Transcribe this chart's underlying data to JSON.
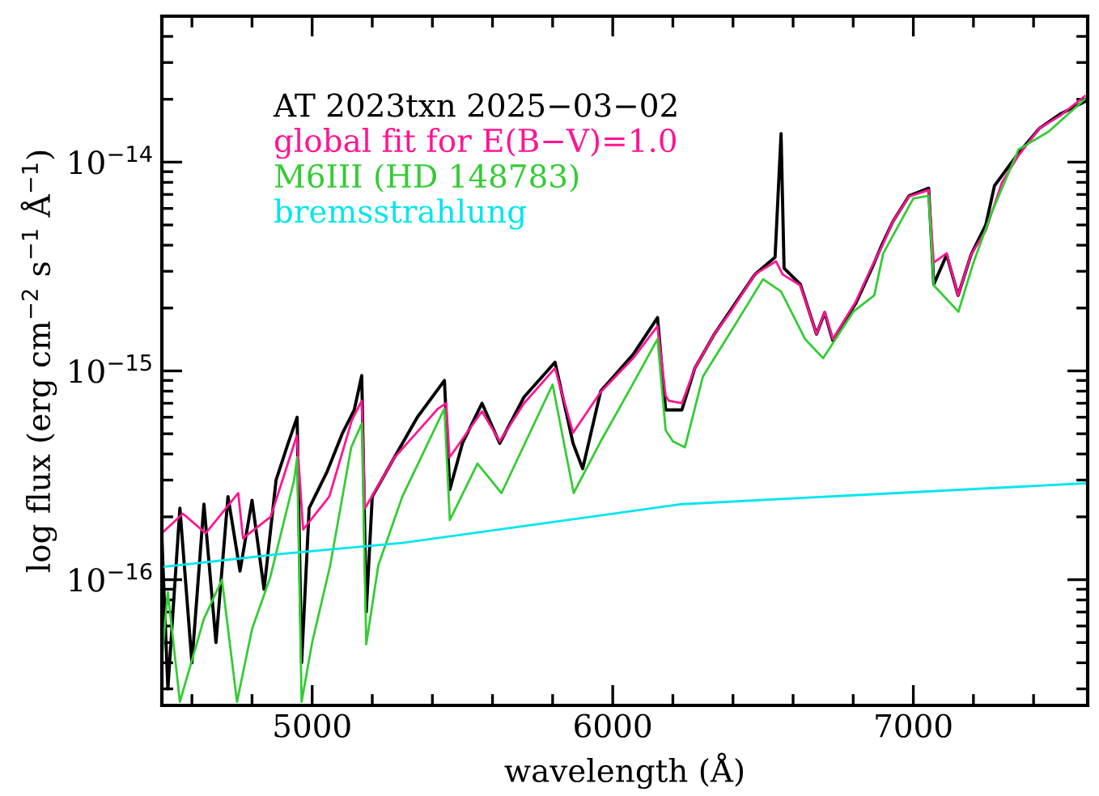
{
  "chart_data": {
    "type": "line",
    "xlabel": "wavelength (Å)",
    "ylabel": "log flux (erg cm$^{−2}$ s$^{−1}$ Å$^{−1}$)",
    "log": "y",
    "grid": false,
    "legend": "top left",
    "marker": "none",
    "line_style": "solid",
    "xlim": [
      4500,
      7580
    ],
    "ylim": [
      2.5e-17,
      5e-14
    ],
    "xticks": [
      {
        "value": 4600,
        "label": null
      },
      {
        "value": 4800,
        "label": null
      },
      5000,
      {
        "value": 5200,
        "label": null
      },
      {
        "value": 5400,
        "label": null
      },
      {
        "value": 5600,
        "label": null
      },
      {
        "value": 5800,
        "label": null
      },
      6000,
      {
        "value": 6200,
        "label": null
      },
      {
        "value": 6400,
        "label": null
      },
      {
        "value": 6600,
        "label": null
      },
      {
        "value": 6800,
        "label": null
      },
      7000,
      {
        "value": 7200,
        "label": null
      },
      {
        "value": 7400,
        "label": null
      }
    ],
    "yticks": [
      {
        "value": 3e-17,
        "label": null
      },
      {
        "value": 4e-17,
        "label": null
      },
      {
        "value": 5e-17,
        "label": null
      },
      {
        "value": 6e-17,
        "label": null
      },
      {
        "value": 7e-17,
        "label": null
      },
      {
        "value": 8e-17,
        "label": null
      },
      {
        "value": 9e-17,
        "label": null
      },
      {
        "value": 1e-16,
        "label": "10$^{−16}$"
      },
      {
        "value": 2e-16,
        "label": null
      },
      {
        "value": 3e-16,
        "label": null
      },
      {
        "value": 4e-16,
        "label": null
      },
      {
        "value": 5e-16,
        "label": null
      },
      {
        "value": 6e-16,
        "label": null
      },
      {
        "value": 7e-16,
        "label": null
      },
      {
        "value": 8e-16,
        "label": null
      },
      {
        "value": 9e-16,
        "label": null
      },
      {
        "value": 1e-15,
        "label": "10$^{−15}$"
      },
      {
        "value": 2e-15,
        "label": null
      },
      {
        "value": 3e-15,
        "label": null
      },
      {
        "value": 4e-15,
        "label": null
      },
      {
        "value": 5e-15,
        "label": null
      },
      {
        "value": 6e-15,
        "label": null
      },
      {
        "value": 7e-15,
        "label": null
      },
      {
        "value": 8e-15,
        "label": null
      },
      {
        "value": 9e-15,
        "label": null
      },
      {
        "value": 1e-14,
        "label": "10$^{−14}$"
      },
      {
        "value": 2e-14,
        "label": null
      },
      {
        "value": 3e-14,
        "label": null
      },
      {
        "value": 4e-14,
        "label": null
      },
      {
        "value": 5e-14,
        "label": null
      }
    ],
    "series": [
      {
        "name": "AT 2023txn 2025−03−02",
        "color": "#000000",
        "x": [
          4500,
          4520,
          4560,
          4600,
          4640,
          4680,
          4720,
          4760,
          4800,
          4840,
          4880,
          4920,
          4950,
          4965,
          4990,
          5050,
          5100,
          5140,
          5165,
          5180,
          5200,
          5280,
          5350,
          5440,
          5458,
          5500,
          5565,
          5624,
          5705,
          5808,
          5868,
          5900,
          5960,
          6068,
          6149,
          6176,
          6230,
          6273,
          6338,
          6392,
          6473,
          6540,
          6560,
          6570,
          6624,
          6678,
          6705,
          6732,
          6808,
          6862,
          6895,
          6932,
          6986,
          7051,
          7068,
          7111,
          7149,
          7192,
          7241,
          7270,
          7349,
          7419,
          7489,
          7570
        ],
        "values": [
          1.6e-16,
          3e-17,
          2.2e-16,
          4e-17,
          2.3e-16,
          5e-17,
          2.5e-16,
          1.1e-16,
          2.4e-16,
          9e-17,
          3e-16,
          4.5e-16,
          6e-16,
          4e-17,
          2.2e-16,
          3.3e-16,
          5e-16,
          6.5e-16,
          9.5e-16,
          7e-17,
          2.5e-16,
          4e-16,
          6e-16,
          9e-16,
          2.7e-16,
          4.5e-16,
          7e-16,
          4.5e-16,
          7.5e-16,
          1.1e-15,
          4.5e-16,
          3.4e-16,
          8e-16,
          1.2e-15,
          1.8e-15,
          6.5e-16,
          6.5e-16,
          1.03e-15,
          1.5e-15,
          1.95e-15,
          2.9e-15,
          3.5e-15,
          1.37e-14,
          3.1e-15,
          2.6e-15,
          1.5e-15,
          1.9e-15,
          1.4e-15,
          2.1e-15,
          3.1e-15,
          4e-15,
          5.2e-15,
          6.9e-15,
          7.5e-15,
          2.6e-15,
          3.6e-15,
          2.3e-15,
          3.6e-15,
          5e-15,
          7.7e-15,
          1.1e-14,
          1.45e-14,
          1.7e-14,
          1.95e-14
        ]
      },
      {
        "name": "global fit for E(B−V)=1.0",
        "color": "#ff1493",
        "x": [
          4500,
          4570,
          4646,
          4754,
          4770,
          4862,
          4949,
          4970,
          5057,
          5132,
          5165,
          5176,
          5274,
          5419,
          5446,
          5457,
          5565,
          5624,
          5705,
          5808,
          5868,
          5959,
          6068,
          6149,
          6176,
          6186,
          6230,
          6273,
          6338,
          6392,
          6473,
          6543,
          6565,
          6624,
          6678,
          6705,
          6732,
          6808,
          6862,
          6895,
          6932,
          6986,
          7051,
          7068,
          7111,
          7149,
          7192,
          7241,
          7295,
          7349,
          7419,
          7489,
          7570
        ],
        "values": [
          1.67e-16,
          2.07e-16,
          1.67e-16,
          2.6e-16,
          1.58e-16,
          2e-16,
          4.9e-16,
          1.74e-16,
          2.5e-16,
          5.8e-16,
          7.2e-16,
          2.2e-16,
          3.85e-16,
          6.6e-16,
          7e-16,
          3.85e-16,
          6.4e-16,
          4.6e-16,
          7e-16,
          1.03e-15,
          5.05e-16,
          7.9e-16,
          1.15e-15,
          1.64e-15,
          7.6e-16,
          7.2e-16,
          7e-16,
          1.03e-15,
          1.5e-15,
          1.92e-15,
          2.9e-15,
          3.35e-15,
          2.9e-15,
          2.57e-15,
          1.5e-15,
          1.92e-15,
          1.42e-15,
          2.14e-15,
          3.16e-15,
          3.93e-15,
          5.2e-15,
          6.85e-15,
          7.35e-15,
          3.3e-15,
          3.66e-15,
          2.3e-15,
          3.6e-15,
          4.7e-15,
          8e-15,
          1.07e-14,
          1.45e-14,
          1.67e-14,
          2.07e-14
        ]
      },
      {
        "name": "M6III (HD 148783)",
        "color": "#33cc33",
        "x": [
          4500,
          4520,
          4560,
          4640,
          4700,
          4750,
          4800,
          4860,
          4940,
          4950,
          4965,
          5000,
          5060,
          5130,
          5165,
          5180,
          5220,
          5300,
          5440,
          5458,
          5550,
          5630,
          5720,
          5800,
          5870,
          5960,
          6060,
          6149,
          6176,
          6200,
          6240,
          6300,
          6400,
          6500,
          6560,
          6640,
          6700,
          6800,
          6870,
          6900,
          7000,
          7051,
          7068,
          7150,
          7200,
          7260,
          7350,
          7450,
          7570
        ],
        "values": [
          4.2e-17,
          8.7e-17,
          2.6e-17,
          6.5e-17,
          1e-16,
          2.6e-17,
          5.8e-17,
          1.02e-16,
          3e-16,
          3.85e-16,
          2.6e-17,
          5e-17,
          1.17e-16,
          4.3e-16,
          5.6e-16,
          4.9e-17,
          1.17e-16,
          2.5e-16,
          6.6e-16,
          1.93e-16,
          3.6e-16,
          2.6e-16,
          4.9e-16,
          8.6e-16,
          2.6e-16,
          4.6e-16,
          8.3e-16,
          1.42e-15,
          5.2e-16,
          4.6e-16,
          4.3e-16,
          9.4e-16,
          1.6e-15,
          2.75e-15,
          2.4e-15,
          1.42e-15,
          1.15e-15,
          1.92e-15,
          2.3e-15,
          3.66e-15,
          6.7e-15,
          6.9e-15,
          2.57e-15,
          1.92e-15,
          3.3e-15,
          5.7e-15,
          1.15e-14,
          1.4e-14,
          2e-14
        ]
      },
      {
        "name": "bremsstrahlung",
        "color": "#00e5ee",
        "x": [
          4500,
          4900,
          5300,
          6230,
          7580
        ],
        "values": [
          1.15e-16,
          1.33e-16,
          1.5e-16,
          2.3e-16,
          2.9e-16
        ]
      }
    ]
  }
}
